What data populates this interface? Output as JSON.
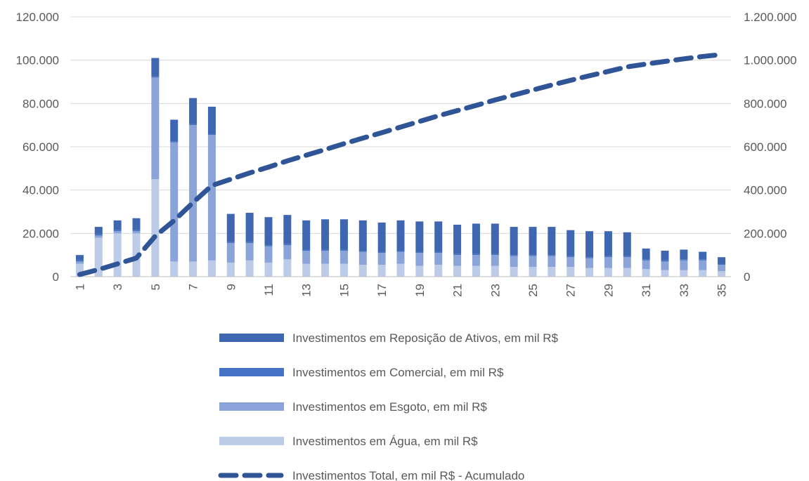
{
  "chart_data": {
    "type": "bar",
    "stacked": true,
    "categories": [
      1,
      2,
      3,
      4,
      5,
      6,
      7,
      8,
      9,
      10,
      11,
      12,
      13,
      14,
      15,
      16,
      17,
      18,
      19,
      20,
      21,
      22,
      23,
      24,
      25,
      26,
      27,
      28,
      29,
      30,
      31,
      32,
      33,
      34,
      35
    ],
    "x_tick_labels": [
      "1",
      "3",
      "5",
      "7",
      "9",
      "11",
      "13",
      "15",
      "17",
      "19",
      "21",
      "23",
      "25",
      "27",
      "29",
      "31",
      "33",
      "35"
    ],
    "y_left": {
      "min": 0,
      "max": 120000,
      "ticks": [
        "0",
        "20.000",
        "40.000",
        "60.000",
        "80.000",
        "100.000",
        "120.000"
      ]
    },
    "y_right": {
      "min": 0,
      "max": 1200000,
      "ticks": [
        "0",
        "200.000",
        "400.000",
        "600.000",
        "800.000",
        "1.000.000",
        "1.200.000"
      ]
    },
    "grid": true,
    "legend_position": "bottom",
    "series": [
      {
        "name": "Investimentos em Água, em mil R$",
        "axis": "left",
        "color": "#bccbe8",
        "values": [
          6000,
          18000,
          20000,
          20000,
          45000,
          7000,
          7000,
          7500,
          6500,
          7500,
          6500,
          8000,
          6000,
          6000,
          6000,
          5500,
          5500,
          6000,
          5000,
          5500,
          5000,
          5000,
          5000,
          4500,
          4500,
          4500,
          4500,
          4000,
          4000,
          4000,
          3500,
          3000,
          3000,
          3000,
          2500
        ]
      },
      {
        "name": "Investimentos em Esgoto, em mil R$",
        "axis": "left",
        "color": "#8aa3d8",
        "values": [
          1000,
          1000,
          1000,
          1000,
          47000,
          55000,
          63000,
          58000,
          9000,
          8000,
          7500,
          6500,
          6000,
          6000,
          6000,
          6000,
          5500,
          5500,
          6000,
          5500,
          5000,
          5000,
          5000,
          5000,
          5000,
          5000,
          4500,
          4500,
          5000,
          5000,
          4000,
          4000,
          4500,
          4500,
          3000
        ]
      },
      {
        "name": "Investimentos em Comercial, em mil R$",
        "axis": "left",
        "color": "#4472c4",
        "values": [
          500,
          500,
          500,
          500,
          500,
          500,
          500,
          500,
          500,
          500,
          500,
          500,
          500,
          500,
          500,
          500,
          500,
          500,
          500,
          500,
          500,
          500,
          500,
          500,
          500,
          500,
          500,
          500,
          500,
          500,
          500,
          500,
          500,
          500,
          500
        ]
      },
      {
        "name": "Investimentos em Reposição de Ativos, em mil R$",
        "axis": "left",
        "color": "#3f66b0",
        "values": [
          2500,
          3500,
          4500,
          5500,
          8500,
          10000,
          12000,
          12500,
          13000,
          13500,
          13000,
          13500,
          13500,
          14000,
          14000,
          14000,
          13500,
          14000,
          14000,
          14000,
          13500,
          14000,
          14000,
          13000,
          13000,
          13000,
          12000,
          12000,
          11500,
          11000,
          5000,
          4500,
          4500,
          3500,
          3000
        ]
      },
      {
        "name": "Investimentos Total, em mil R$ - Acumulado",
        "type": "line",
        "style": "dashed",
        "axis": "right",
        "color": "#2f5597",
        "values": [
          10000,
          33000,
          59000,
          86000,
          187000,
          259000,
          342000,
          421000,
          450000,
          479000,
          506000,
          535000,
          561000,
          587000,
          614000,
          640000,
          665000,
          691000,
          717000,
          743000,
          767000,
          791000,
          816000,
          839000,
          862000,
          885000,
          907000,
          928000,
          948000,
          969000,
          982000,
          994000,
          1006000,
          1017000,
          1026000
        ]
      }
    ]
  }
}
